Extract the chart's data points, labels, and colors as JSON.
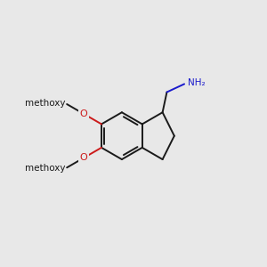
{
  "bg_color": "#e8e8e8",
  "bond_color": "#1a1a1a",
  "n_color": "#1a1acc",
  "o_color": "#cc1a1a",
  "lw": 1.4,
  "figsize": [
    3.0,
    3.0
  ],
  "dpi": 100,
  "BL": 0.088,
  "fs_label": 7.5,
  "nh2_label": "NH₂",
  "o_label": "O",
  "me_label": "methoxy"
}
